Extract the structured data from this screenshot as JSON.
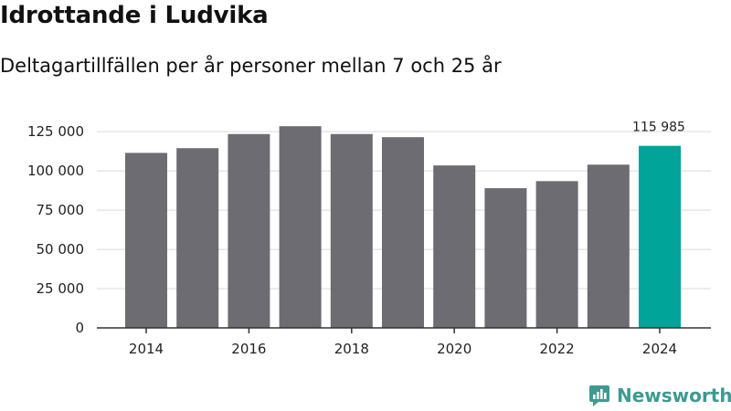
{
  "header": {
    "title": "Idrottande i Ludvika",
    "subtitle": "Deltagartillfällen per år personer mellan 7 och 25 år"
  },
  "brand": {
    "name": "Newsworthy",
    "logo_icon": "newsworthy-logo-icon"
  },
  "colors": {
    "bar": "#6d6c72",
    "highlight": "#00a499",
    "grid": "#d9d9d9",
    "axis": "#333333",
    "brand": "#3d9a92"
  },
  "chart_data": {
    "type": "bar",
    "title": "Idrottande i Ludvika",
    "subtitle": "Deltagartillfällen per år personer mellan 7 och 25 år",
    "categories": [
      "2014",
      "2015",
      "2016",
      "2017",
      "2018",
      "2019",
      "2020",
      "2021",
      "2022",
      "2023",
      "2024"
    ],
    "values": [
      111500,
      114500,
      123500,
      128500,
      123500,
      121500,
      103500,
      89000,
      93500,
      104000,
      115985
    ],
    "x_tick_labels": [
      "2014",
      "2016",
      "2018",
      "2020",
      "2022",
      "2024"
    ],
    "y_ticks": [
      0,
      25000,
      50000,
      75000,
      100000,
      125000
    ],
    "y_tick_labels": [
      "0",
      "25 000",
      "50 000",
      "75 000",
      "100 000",
      "125 000"
    ],
    "ylim": [
      0,
      135000
    ],
    "highlight_index": 10,
    "data_labels": [
      {
        "index": 10,
        "text": "115 985"
      }
    ],
    "grid": "horizontal",
    "xlabel": "",
    "ylabel": ""
  }
}
